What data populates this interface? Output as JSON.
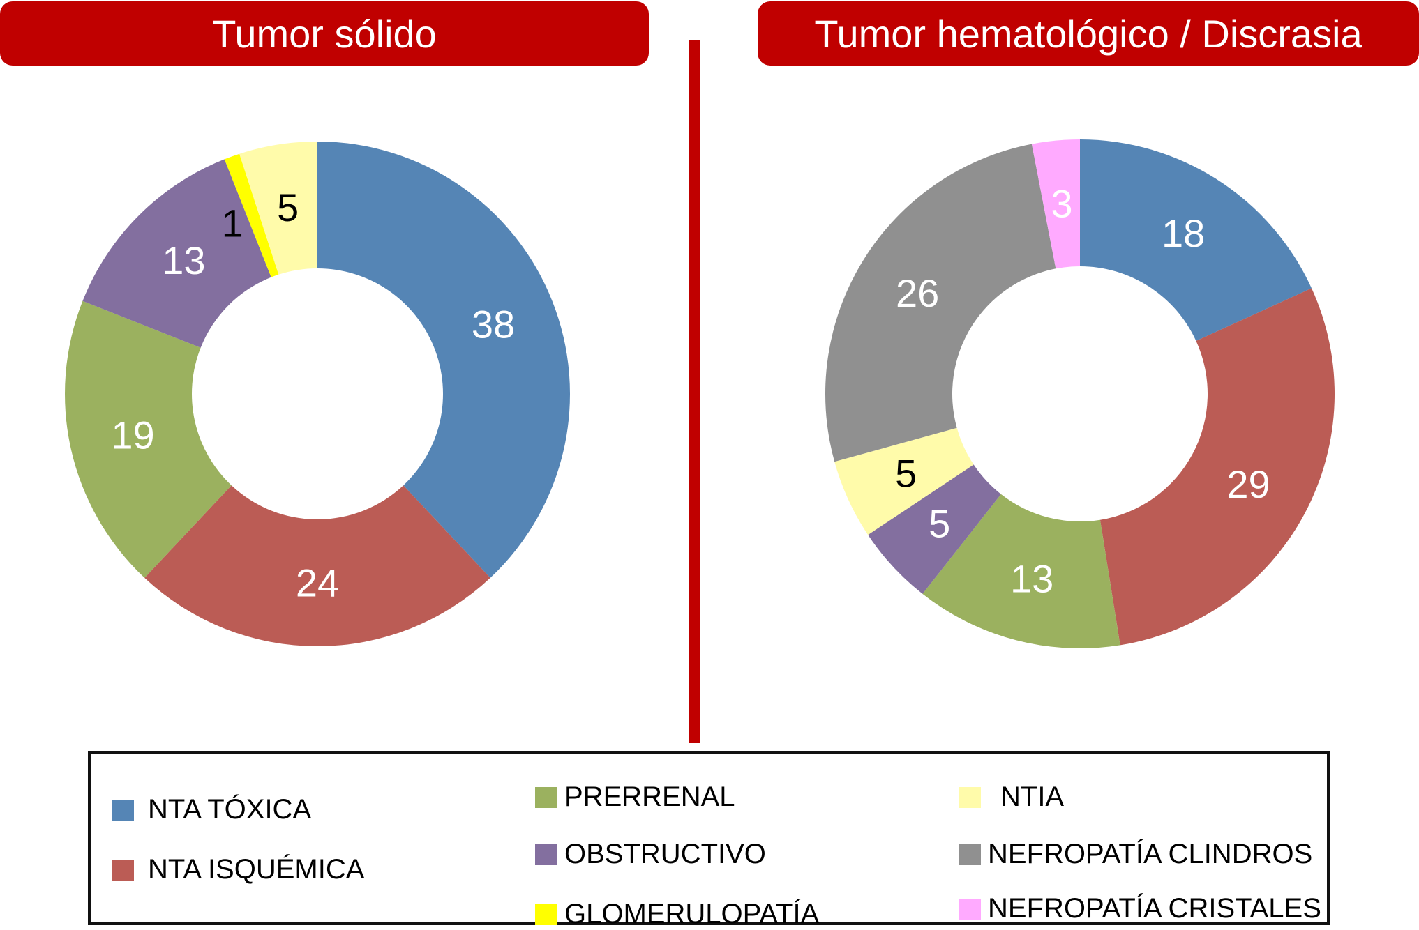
{
  "titles": {
    "left": "Tumor sólido",
    "right": "Tumor hematológico / Discrasia"
  },
  "legend": [
    {
      "label": "NTA TÓXICA",
      "color": "#5585b5"
    },
    {
      "label": "NTA ISQUÉMICA",
      "color": "#bb5c55"
    },
    {
      "label": "PRERRENAL",
      "color": "#9bb15f"
    },
    {
      "label": "OBSTRUCTIVO",
      "color": "#836f9f"
    },
    {
      "label": "GLOMERULOPATÍA",
      "color": "#ffff00"
    },
    {
      "label": "NTIA",
      "color": "#fffbaa"
    },
    {
      "label": "NEFROPATÍA CLINDROS",
      "color": "#909090"
    },
    {
      "label": "NEFROPATÍA CRISTALES",
      "color": "#ffaaff"
    }
  ],
  "chart_data": [
    {
      "type": "pie",
      "title": "Tumor sólido",
      "donut": true,
      "categories": [
        "NTA TÓXICA",
        "NTA ISQUÉMICA",
        "PRERRENAL",
        "OBSTRUCTIVO",
        "GLOMERULOPATÍA",
        "NTIA"
      ],
      "values": [
        38,
        24,
        19,
        13,
        1,
        5
      ],
      "colors": [
        "#5585b5",
        "#bb5c55",
        "#9bb15f",
        "#836f9f",
        "#ffff00",
        "#fffbaa"
      ],
      "label_colors": [
        "#ffffff",
        "#ffffff",
        "#ffffff",
        "#ffffff",
        "#000000",
        "#000000"
      ],
      "direction": "clockwise from top"
    },
    {
      "type": "pie",
      "title": "Tumor hematológico / Discrasia",
      "donut": true,
      "categories": [
        "NTA TÓXICA",
        "NTA ISQUÉMICA",
        "PRERRENAL",
        "OBSTRUCTIVO",
        "NTIA",
        "NEFROPATÍA CLINDROS",
        "NEFROPATÍA CRISTALES"
      ],
      "values": [
        18,
        29,
        13,
        5,
        5,
        26,
        3
      ],
      "colors": [
        "#5585b5",
        "#bb5c55",
        "#9bb15f",
        "#836f9f",
        "#fffbaa",
        "#909090",
        "#ffaaff"
      ],
      "label_colors": [
        "#ffffff",
        "#ffffff",
        "#ffffff",
        "#ffffff",
        "#000000",
        "#ffffff",
        "#ffffff"
      ],
      "direction": "clockwise from top"
    }
  ]
}
